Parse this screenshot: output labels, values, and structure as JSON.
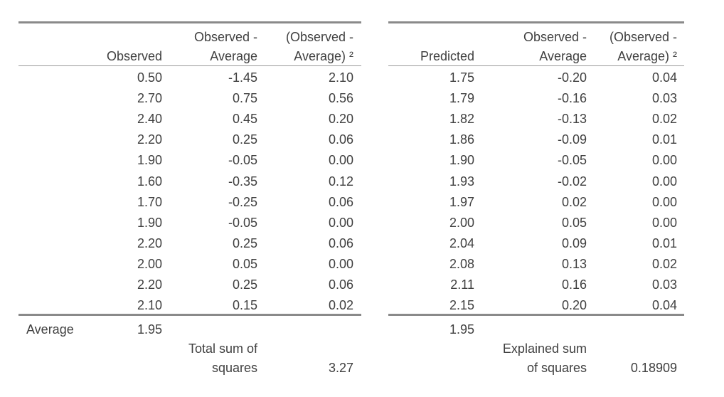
{
  "left_table": {
    "headers": {
      "observed": "Observed",
      "dev_line1": "Observed -",
      "dev_line2": "Average",
      "sq_line1": "(Observed -",
      "sq_line2": "Average) ²"
    },
    "rows": [
      [
        "0.50",
        "-1.45",
        "2.10"
      ],
      [
        "2.70",
        "0.75",
        "0.56"
      ],
      [
        "2.40",
        "0.45",
        "0.20"
      ],
      [
        "2.20",
        "0.25",
        "0.06"
      ],
      [
        "1.90",
        "-0.05",
        "0.00"
      ],
      [
        "1.60",
        "-0.35",
        "0.12"
      ],
      [
        "1.70",
        "-0.25",
        "0.06"
      ],
      [
        "1.90",
        "-0.05",
        "0.00"
      ],
      [
        "2.20",
        "0.25",
        "0.06"
      ],
      [
        "2.00",
        "0.05",
        "0.00"
      ],
      [
        "2.20",
        "0.25",
        "0.06"
      ],
      [
        "2.10",
        "0.15",
        "0.02"
      ]
    ],
    "average_label": "Average",
    "average_value": "1.95",
    "total_label_line1": "Total sum of",
    "total_label_line2": "squares",
    "total_value": "3.27"
  },
  "right_table": {
    "headers": {
      "predicted": "Predicted",
      "dev_line1": "Observed -",
      "dev_line2": "Average",
      "sq_line1": "(Observed -",
      "sq_line2": "Average) ²"
    },
    "rows": [
      [
        "1.75",
        "-0.20",
        "0.04"
      ],
      [
        "1.79",
        "-0.16",
        "0.03"
      ],
      [
        "1.82",
        "-0.13",
        "0.02"
      ],
      [
        "1.86",
        "-0.09",
        "0.01"
      ],
      [
        "1.90",
        "-0.05",
        "0.00"
      ],
      [
        "1.93",
        "-0.02",
        "0.00"
      ],
      [
        "1.97",
        "0.02",
        "0.00"
      ],
      [
        "2.00",
        "0.05",
        "0.00"
      ],
      [
        "2.04",
        "0.09",
        "0.01"
      ],
      [
        "2.08",
        "0.13",
        "0.02"
      ],
      [
        "2.11",
        "0.16",
        "0.03"
      ],
      [
        "2.15",
        "0.20",
        "0.04"
      ]
    ],
    "average_value": "1.95",
    "explained_label_line1": "Explained sum",
    "explained_label_line2": "of squares",
    "explained_value": "0.18909"
  }
}
